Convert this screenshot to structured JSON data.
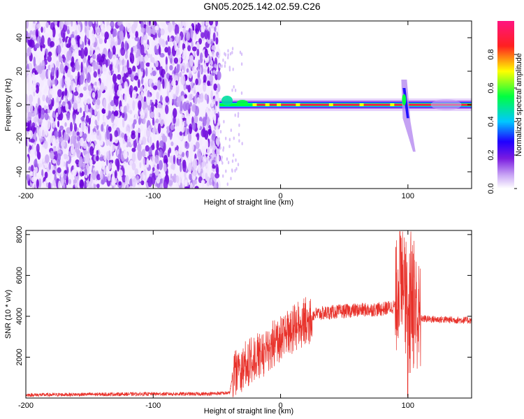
{
  "title": "GN05.2025.142.02.59.C26",
  "chart_data": [
    {
      "type": "heatmap",
      "xlabel": "Height of straight line (km)",
      "ylabel": "Frequency (Hz)",
      "xlim": [
        -200,
        150
      ],
      "ylim": [
        -50,
        50
      ],
      "xticks": [
        -200,
        -100,
        0,
        100
      ],
      "yticks": [
        -40,
        -20,
        0,
        20,
        40
      ],
      "colorbar": {
        "label": "Normalized spectral amplitude",
        "range": [
          0,
          1
        ],
        "ticks": [
          0.0,
          0.2,
          0.4,
          0.6,
          0.8
        ],
        "colors": [
          "#ffffff",
          "#8a2be2",
          "#0000ff",
          "#00ffff",
          "#00ff00",
          "#ffff00",
          "#ff0000",
          "#ff1493"
        ]
      },
      "regions": [
        {
          "name": "noise",
          "x_from": -200,
          "x_to": -48,
          "f_from": -50,
          "f_to": 50
        },
        {
          "name": "signal-line",
          "x_from": -48,
          "x_to": 150,
          "freq": 0
        },
        {
          "name": "spike",
          "x_from": 93,
          "x_to": 105,
          "f_from": -28,
          "f_to": 18
        }
      ]
    },
    {
      "type": "line",
      "xlabel": "Height of straight line (km)",
      "ylabel": "SNR (10 * v/v)",
      "xlim": [
        -200,
        150
      ],
      "ylim": [
        0,
        8200
      ],
      "xticks": [
        -200,
        -100,
        0,
        100
      ],
      "yticks": [
        2000,
        4000,
        6000,
        8000
      ],
      "series": [
        {
          "color": "#e8312a",
          "points": [
            [
              -200,
              150
            ],
            [
              -150,
              180
            ],
            [
              -100,
              200
            ],
            [
              -60,
              200
            ],
            [
              -40,
              250
            ],
            [
              -36,
              1600
            ],
            [
              -30,
              1800
            ],
            [
              -20,
              2200
            ],
            [
              -10,
              2700
            ],
            [
              0,
              3200
            ],
            [
              10,
              3700
            ],
            [
              20,
              4050
            ],
            [
              40,
              4200
            ],
            [
              60,
              4300
            ],
            [
              80,
              4350
            ],
            [
              90,
              4500
            ],
            [
              97,
              7800
            ],
            [
              100,
              2000
            ],
            [
              103,
              5500
            ],
            [
              108,
              3900
            ],
            [
              120,
              3850
            ],
            [
              150,
              3800
            ]
          ]
        }
      ]
    }
  ]
}
